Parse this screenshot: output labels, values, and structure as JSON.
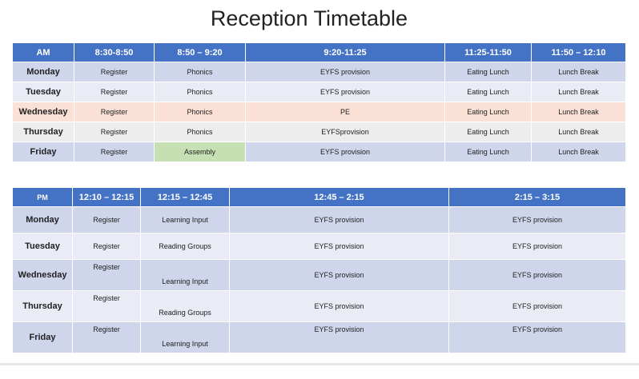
{
  "title": "Reception Timetable",
  "am": {
    "headers": [
      "AM",
      "8:30-8:50",
      "8:50 – 9:20",
      "9:20-11:25",
      "11:25-11:50",
      "11:50 – 12:10"
    ],
    "rows": [
      {
        "day": "Monday",
        "cells": [
          "Register",
          "Phonics",
          "EYFS provision",
          "Eating Lunch",
          "Lunch Break"
        ]
      },
      {
        "day": "Tuesday",
        "cells": [
          "Register",
          "Phonics",
          "EYFS provision",
          "Eating Lunch",
          "Lunch Break"
        ]
      },
      {
        "day": "Wednesday",
        "cells": [
          "Register",
          "Phonics",
          "PE",
          "Eating Lunch",
          "Lunch Break"
        ]
      },
      {
        "day": "Thursday",
        "cells": [
          "Register",
          "Phonics",
          "EYFSprovision",
          "Eating Lunch",
          "Lunch Break"
        ]
      },
      {
        "day": "Friday",
        "cells": [
          "Register",
          "Assembly",
          "EYFS provision",
          "Eating Lunch",
          "Lunch Break"
        ]
      }
    ]
  },
  "pm": {
    "headers": [
      "PM",
      "12:10 – 12:15",
      "12:15 – 12:45",
      "12:45 – 2:15",
      "2:15 – 3:15"
    ],
    "rows": [
      {
        "day": "Monday",
        "cells": [
          "Register",
          "Learning Input",
          "EYFS provision",
          "EYFS provision"
        ]
      },
      {
        "day": "Tuesday",
        "cells": [
          "Register",
          "Reading Groups",
          "EYFS provision",
          "EYFS provision"
        ]
      },
      {
        "day": "Wednesday",
        "cells": [
          "Register",
          "Learning Input",
          "EYFS provision",
          "EYFS provision"
        ]
      },
      {
        "day": "Thursday",
        "cells": [
          "Register",
          "Reading Groups",
          "EYFS provision",
          "EYFS provision"
        ]
      },
      {
        "day": "Friday",
        "cells": [
          "Register",
          "Learning Input",
          "EYFS provision",
          "EYFS provision"
        ]
      }
    ]
  },
  "colors": {
    "header": "#4472c4",
    "row_odd": "#cfd5ea",
    "row_even": "#e9ebf5",
    "wednesday_am": "#fbe1d5",
    "thursday_am": "#ededed",
    "assembly": "#c6e0b4"
  }
}
